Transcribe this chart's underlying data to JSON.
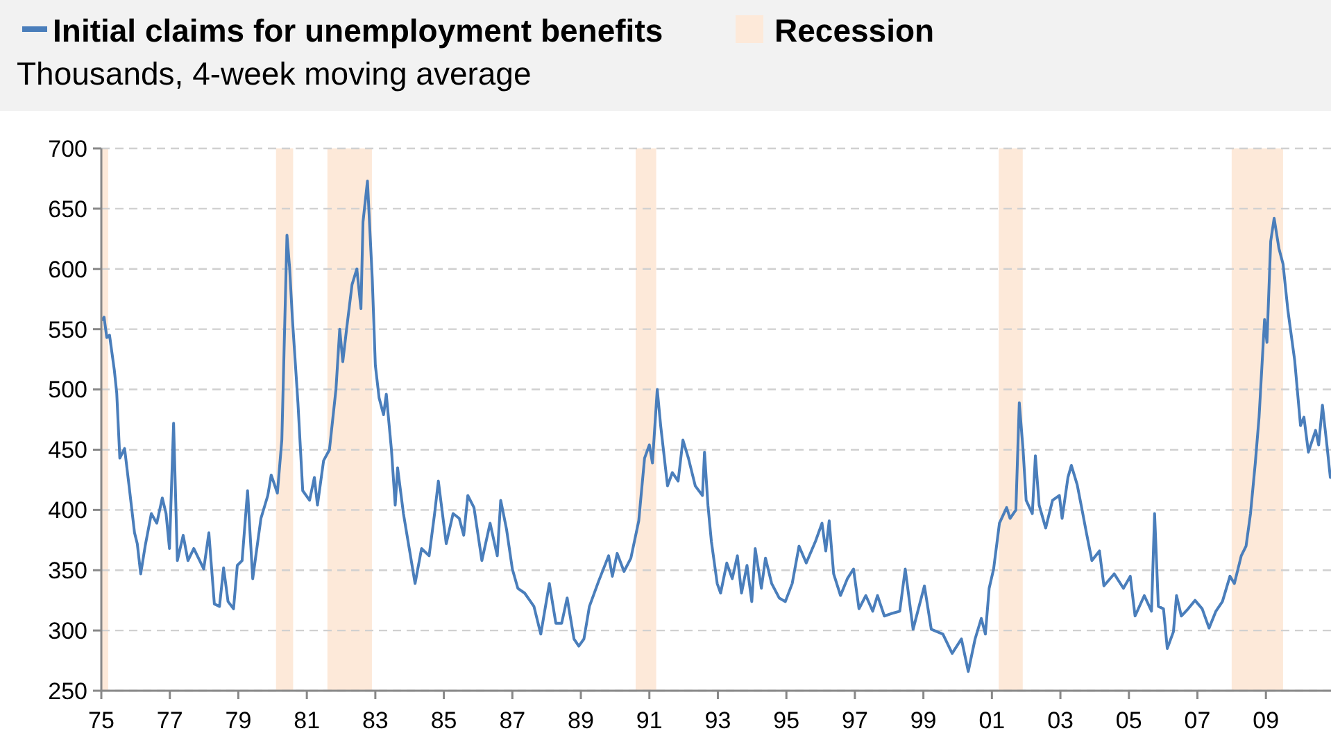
{
  "chart_data": {
    "type": "line",
    "title": null,
    "subtitle": "Thousands, 4-week moving average",
    "legend": "top left",
    "grid": "y",
    "xlim": [
      1975,
      2010.9
    ],
    "xticks": [
      {
        "value": 1975,
        "label": "75"
      },
      {
        "value": 1977,
        "label": "77"
      },
      {
        "value": 1979,
        "label": "79"
      },
      {
        "value": 1981,
        "label": "81"
      },
      {
        "value": 1983,
        "label": "83"
      },
      {
        "value": 1985,
        "label": "85"
      },
      {
        "value": 1987,
        "label": "87"
      },
      {
        "value": 1989,
        "label": "89"
      },
      {
        "value": 1991,
        "label": "91"
      },
      {
        "value": 1993,
        "label": "93"
      },
      {
        "value": 1995,
        "label": "95"
      },
      {
        "value": 1997,
        "label": "97"
      },
      {
        "value": 1999,
        "label": "99"
      },
      {
        "value": 2001,
        "label": "01"
      },
      {
        "value": 2003,
        "label": "03"
      },
      {
        "value": 2005,
        "label": "05"
      },
      {
        "value": 2007,
        "label": "07"
      },
      {
        "value": 2009,
        "label": "09"
      }
    ],
    "ylim": [
      250,
      700
    ],
    "yticks": [
      250,
      300,
      350,
      400,
      450,
      500,
      550,
      600,
      650,
      700
    ],
    "bands": [
      {
        "axis": "x",
        "from": 1975,
        "to": 1975.2,
        "label": "Recession",
        "color": "#fde9d9"
      },
      {
        "axis": "x",
        "from": 1980.1,
        "to": 1980.6,
        "color": "#fde9d9"
      },
      {
        "axis": "x",
        "from": 1981.6,
        "to": 1982.9,
        "color": "#fde9d9"
      },
      {
        "axis": "x",
        "from": 1990.6,
        "to": 1991.2,
        "color": "#fde9d9"
      },
      {
        "axis": "x",
        "from": 2001.2,
        "to": 2001.9,
        "color": "#fde9d9"
      },
      {
        "axis": "x",
        "from": 2008,
        "to": 2009.5,
        "color": "#fde9d9"
      }
    ],
    "series": [
      {
        "name": "Initial claims for unemployment benefits",
        "color": "#4a7ebb",
        "x": [
          1975.03,
          1975.08,
          1975.16,
          1975.24,
          1975.38,
          1975.45,
          1975.54,
          1975.68,
          1975.81,
          1975.97,
          1976.05,
          1976.15,
          1976.28,
          1976.46,
          1976.62,
          1976.78,
          1976.89,
          1976.99,
          1977.11,
          1977.22,
          1977.39,
          1977.53,
          1977.7,
          1977.99,
          1978.14,
          1978.3,
          1978.45,
          1978.57,
          1978.7,
          1978.86,
          1978.97,
          1979.11,
          1979.27,
          1979.42,
          1979.66,
          1979.86,
          1979.96,
          1980.14,
          1980.27,
          1980.42,
          1980.5,
          1980.58,
          1980.74,
          1980.88,
          1981.08,
          1981.22,
          1981.31,
          1981.49,
          1981.66,
          1981.85,
          1981.96,
          1982.05,
          1982.16,
          1982.32,
          1982.46,
          1982.58,
          1982.64,
          1982.77,
          1982.91,
          1983.0,
          1983.11,
          1983.24,
          1983.32,
          1983.47,
          1983.58,
          1983.65,
          1983.82,
          1983.99,
          1984.16,
          1984.35,
          1984.57,
          1984.73,
          1984.84,
          1985.07,
          1985.27,
          1985.45,
          1985.58,
          1985.7,
          1985.88,
          1986.11,
          1986.35,
          1986.56,
          1986.66,
          1986.83,
          1987.0,
          1987.16,
          1987.36,
          1987.63,
          1987.83,
          1988.08,
          1988.27,
          1988.44,
          1988.6,
          1988.8,
          1988.94,
          1989.09,
          1989.25,
          1989.52,
          1989.81,
          1989.92,
          1990.06,
          1990.26,
          1990.46,
          1990.69,
          1990.86,
          1991.0,
          1991.09,
          1991.23,
          1991.33,
          1991.53,
          1991.67,
          1991.84,
          1991.98,
          1992.14,
          1992.34,
          1992.55,
          1992.61,
          1992.71,
          1992.81,
          1992.98,
          1993.08,
          1993.26,
          1993.42,
          1993.57,
          1993.69,
          1993.85,
          1993.99,
          1994.09,
          1994.27,
          1994.39,
          1994.57,
          1994.79,
          1994.97,
          1995.17,
          1995.37,
          1995.58,
          1995.85,
          1996.04,
          1996.15,
          1996.25,
          1996.38,
          1996.58,
          1996.78,
          1996.96,
          1997.12,
          1997.32,
          1997.52,
          1997.66,
          1997.86,
          1998.06,
          1998.31,
          1998.47,
          1998.7,
          1999.03,
          1999.23,
          1999.57,
          1999.84,
          2000.11,
          2000.31,
          2000.51,
          2000.69,
          2000.81,
          2000.92,
          2001.05,
          2001.22,
          2001.43,
          2001.53,
          2001.7,
          2001.8,
          2001.91,
          2002.0,
          2002.18,
          2002.27,
          2002.38,
          2002.57,
          2002.77,
          2002.97,
          2003.05,
          2003.22,
          2003.32,
          2003.49,
          2003.62,
          2003.76,
          2003.92,
          2004.14,
          2004.27,
          2004.57,
          2004.84,
          2005.04,
          2005.18,
          2005.45,
          2005.66,
          2005.75,
          2005.86,
          2006.01,
          2006.12,
          2006.3,
          2006.39,
          2006.53,
          2006.73,
          2006.93,
          2007.14,
          2007.34,
          2007.54,
          2007.73,
          2007.95,
          2008.08,
          2008.28,
          2008.42,
          2008.55,
          2008.69,
          2008.8,
          2008.96,
          2009.03,
          2009.14,
          2009.24,
          2009.38,
          2009.5,
          2009.64,
          2009.84,
          2010.01,
          2010.11,
          2010.24,
          2010.45,
          2010.54,
          2010.65,
          2010.78,
          2010.88
        ],
        "values": [
          558,
          560,
          543,
          545,
          516,
          497,
          443,
          451,
          420,
          381,
          372,
          347,
          370,
          397,
          389,
          410,
          397,
          368,
          472,
          358,
          379,
          358,
          368,
          351,
          381,
          322,
          320,
          352,
          324,
          318,
          354,
          358,
          416,
          343,
          393,
          412,
          429,
          414,
          458,
          628,
          600,
          558,
          489,
          416,
          408,
          427,
          404,
          441,
          450,
          500,
          550,
          523,
          550,
          587,
          600,
          567,
          639,
          673,
          592,
          520,
          493,
          479,
          496,
          450,
          404,
          435,
          397,
          368,
          339,
          368,
          362,
          397,
          424,
          372,
          397,
          393,
          379,
          412,
          402,
          358,
          389,
          362,
          408,
          384,
          351,
          335,
          331,
          320,
          297,
          339,
          306,
          306,
          327,
          293,
          287,
          293,
          320,
          341,
          362,
          345,
          364,
          349,
          360,
          391,
          443,
          454,
          439,
          500,
          470,
          420,
          431,
          424,
          458,
          443,
          420,
          412,
          448,
          404,
          374,
          339,
          331,
          356,
          343,
          362,
          331,
          354,
          324,
          368,
          335,
          360,
          339,
          327,
          324,
          339,
          370,
          356,
          374,
          389,
          366,
          391,
          347,
          329,
          343,
          351,
          318,
          329,
          316,
          329,
          312,
          314,
          316,
          351,
          301,
          337,
          301,
          297,
          281,
          293,
          266,
          293,
          310,
          297,
          335,
          351,
          389,
          402,
          393,
          400,
          489,
          450,
          408,
          397,
          445,
          404,
          385,
          408,
          412,
          393,
          427,
          437,
          421,
          402,
          381,
          358,
          366,
          337,
          347,
          335,
          345,
          312,
          329,
          316,
          397,
          320,
          318,
          285,
          299,
          329,
          312,
          318,
          325,
          318,
          302,
          316,
          324,
          345,
          339,
          362,
          370,
          397,
          439,
          477,
          558,
          539,
          623,
          642,
          617,
          604,
          566,
          524,
          470,
          477,
          448,
          466,
          454,
          487,
          454,
          427
        ]
      }
    ]
  }
}
